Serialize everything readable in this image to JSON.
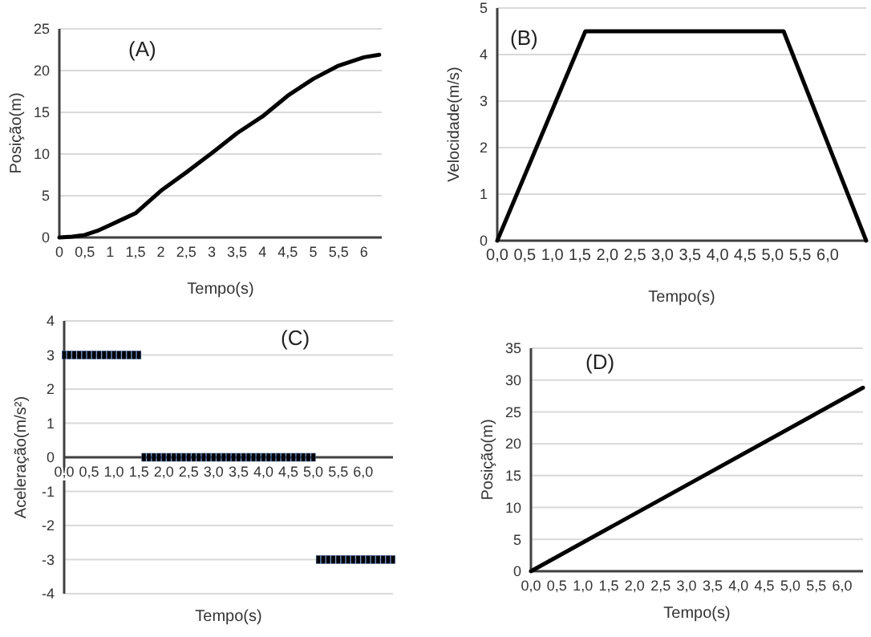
{
  "chart_data": [
    {
      "type": "line",
      "xlabel": "Tempo(s)",
      "ylabel": "Posição(m)",
      "annotations": [
        "(A)"
      ],
      "grid": "y",
      "line_style": "solid",
      "xlim": [
        0,
        6.35
      ],
      "ylim": [
        0,
        25
      ],
      "yticks": [
        0,
        5,
        10,
        15,
        20,
        25
      ],
      "xticks": [
        0,
        {
          "value": 0.5,
          "label": "0,5"
        },
        1,
        {
          "value": 1.5,
          "label": "1,5"
        },
        2,
        {
          "value": 2.5,
          "label": "2,5"
        },
        3,
        {
          "value": 3.5,
          "label": "3,5"
        },
        4,
        {
          "value": 4.5,
          "label": "4,5"
        },
        5,
        {
          "value": 5.5,
          "label": "5,5"
        },
        6
      ],
      "series": [
        {
          "color": "#000000",
          "x": [
            0,
            0.25,
            0.5,
            0.75,
            1,
            1.25,
            1.5,
            2,
            2.5,
            3,
            3.5,
            4,
            4.5,
            5,
            5.5,
            6,
            6.3
          ],
          "values": [
            0,
            0.1,
            0.3,
            0.8,
            1.5,
            2.2,
            2.9,
            5.6,
            7.8,
            10.1,
            12.5,
            14.5,
            17,
            19,
            20.6,
            21.6,
            21.9
          ]
        }
      ]
    },
    {
      "type": "line",
      "xlabel": "Tempo(s)",
      "ylabel": "Velocidade(m/s)",
      "annotations": [
        "(B)"
      ],
      "grid": "y",
      "line_style": "solid",
      "xlim": [
        0,
        6.7
      ],
      "ylim": [
        0,
        5
      ],
      "yticks": [
        0,
        1,
        2,
        3,
        4,
        5
      ],
      "xticks": [
        {
          "value": 0,
          "label": "0,0"
        },
        {
          "value": 0.5,
          "label": "0,5"
        },
        {
          "value": 1,
          "label": "1,0"
        },
        {
          "value": 1.5,
          "label": "1,5"
        },
        {
          "value": 2,
          "label": "2,0"
        },
        {
          "value": 2.5,
          "label": "2,5"
        },
        {
          "value": 3,
          "label": "3,0"
        },
        {
          "value": 3.5,
          "label": "3,5"
        },
        {
          "value": 4,
          "label": "4,0"
        },
        {
          "value": 4.5,
          "label": "4,5"
        },
        {
          "value": 5,
          "label": "5,0"
        },
        {
          "value": 5.5,
          "label": "5,5"
        },
        {
          "value": 6,
          "label": "6,0"
        }
      ],
      "series": [
        {
          "color": "#000000",
          "x": [
            0,
            1.6,
            5.2,
            6.7
          ],
          "values": [
            0,
            4.5,
            4.5,
            0
          ]
        }
      ]
    },
    {
      "type": "scatter",
      "xlabel": "Tempo(s)",
      "ylabel": "Aceleração(m/s²)",
      "annotations": [
        "(C)"
      ],
      "grid": "y",
      "marker": "square",
      "xlim": [
        0,
        6.6
      ],
      "ylim": [
        -4,
        4
      ],
      "yticks": [
        -4,
        -3,
        -2,
        -1,
        0,
        1,
        2,
        3,
        4
      ],
      "xticks": [
        {
          "value": 0,
          "label": "0,0"
        },
        {
          "value": 0.5,
          "label": "0,5"
        },
        {
          "value": 1,
          "label": "1,0"
        },
        {
          "value": 1.5,
          "label": "1,5"
        },
        {
          "value": 2,
          "label": "2,0"
        },
        {
          "value": 2.5,
          "label": "2,5"
        },
        {
          "value": 3,
          "label": "3,0"
        },
        {
          "value": 3.5,
          "label": "3,5"
        },
        {
          "value": 4,
          "label": "4,0"
        },
        {
          "value": 4.5,
          "label": "4,5"
        },
        {
          "value": 5,
          "label": "5,0"
        },
        {
          "value": 5.5,
          "label": "5,5"
        },
        {
          "value": 6,
          "label": "6,0"
        }
      ],
      "series": [
        {
          "color": "#000000",
          "x": [
            0,
            0.1,
            0.2,
            0.3,
            0.4,
            0.5,
            0.6,
            0.7,
            0.8,
            0.9,
            1,
            1.1,
            1.2,
            1.3,
            1.4,
            1.5
          ],
          "values": [
            3,
            3,
            3,
            3,
            3,
            3,
            3,
            3,
            3,
            3,
            3,
            3,
            3,
            3,
            3,
            3
          ]
        },
        {
          "color": "#000000",
          "x": [
            1.6,
            1.7,
            1.8,
            1.9,
            2,
            2.1,
            2.2,
            2.3,
            2.4,
            2.5,
            2.6,
            2.7,
            2.8,
            2.9,
            3,
            3.1,
            3.2,
            3.3,
            3.4,
            3.5,
            3.6,
            3.7,
            3.8,
            3.9,
            4,
            4.1,
            4.2,
            4.3,
            4.4,
            4.5,
            4.6,
            4.7,
            4.8,
            4.9,
            5
          ],
          "values": [
            0,
            0,
            0,
            0,
            0,
            0,
            0,
            0,
            0,
            0,
            0,
            0,
            0,
            0,
            0,
            0,
            0,
            0,
            0,
            0,
            0,
            0,
            0,
            0,
            0,
            0,
            0,
            0,
            0,
            0,
            0,
            0,
            0,
            0,
            0
          ]
        },
        {
          "color": "#000000",
          "x": [
            5.1,
            5.2,
            5.3,
            5.4,
            5.5,
            5.6,
            5.7,
            5.8,
            5.9,
            6,
            6.1,
            6.2,
            6.3,
            6.4,
            6.5,
            6.6
          ],
          "values": [
            -3,
            -3,
            -3,
            -3,
            -3,
            -3,
            -3,
            -3,
            -3,
            -3,
            -3,
            -3,
            -3,
            -3,
            -3,
            -3
          ]
        }
      ]
    },
    {
      "type": "line",
      "xlabel": "Tempo(s)",
      "ylabel": "Posição(m)",
      "annotations": [
        "(D)"
      ],
      "grid": "y",
      "line_style": "solid",
      "xlim": [
        0,
        6.4
      ],
      "ylim": [
        0,
        35
      ],
      "yticks": [
        0,
        5,
        10,
        15,
        20,
        25,
        30,
        35
      ],
      "xticks": [
        {
          "value": 0,
          "label": "0,0"
        },
        {
          "value": 0.5,
          "label": "0,5"
        },
        {
          "value": 1,
          "label": "1,0"
        },
        {
          "value": 1.5,
          "label": "1,5"
        },
        {
          "value": 2,
          "label": "2,0"
        },
        {
          "value": 2.5,
          "label": "2,5"
        },
        {
          "value": 3,
          "label": "3,0"
        },
        {
          "value": 3.5,
          "label": "3,5"
        },
        {
          "value": 4,
          "label": "4,0"
        },
        {
          "value": 4.5,
          "label": "4,5"
        },
        {
          "value": 5,
          "label": "5,0"
        },
        {
          "value": 5.5,
          "label": "5,5"
        },
        {
          "value": 6,
          "label": "6,0"
        }
      ],
      "series": [
        {
          "color": "#000000",
          "x": [
            0,
            6.4
          ],
          "values": [
            0,
            28.8
          ]
        }
      ]
    }
  ]
}
